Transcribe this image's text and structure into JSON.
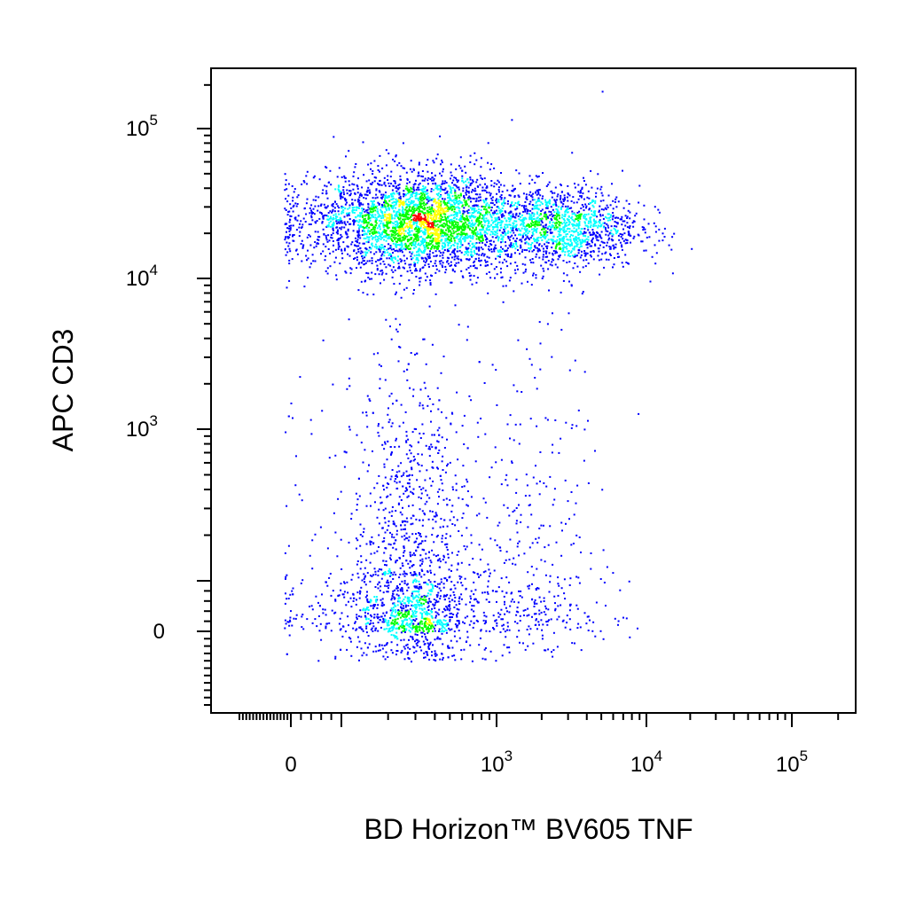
{
  "chart_data": {
    "type": "scatter",
    "title": "",
    "xlabel": "BD Horizon™  BV605 TNF",
    "ylabel": "APC CD3",
    "x_scale": "biexponential",
    "y_scale": "biexponential",
    "xlim": [
      -300,
      250000
    ],
    "ylim": [
      -200,
      250000
    ],
    "x_ticks": [
      {
        "value": 0,
        "base": "0",
        "exp": ""
      },
      {
        "value": 1000,
        "base": "10",
        "exp": "3"
      },
      {
        "value": 10000,
        "base": "10",
        "exp": "4"
      },
      {
        "value": 100000,
        "base": "10",
        "exp": "5"
      }
    ],
    "y_ticks": [
      {
        "value": 0,
        "base": "0",
        "exp": ""
      },
      {
        "value": 1000,
        "base": "10",
        "exp": "3"
      },
      {
        "value": 10000,
        "base": "10",
        "exp": "4"
      },
      {
        "value": 100000,
        "base": "10",
        "exp": "5"
      }
    ],
    "density_colors": [
      "#0000ff",
      "#00ffff",
      "#00ff00",
      "#ffff00",
      "#ff0000"
    ],
    "grid": false,
    "legend": "none",
    "populations": [
      {
        "x_center": 330,
        "x_spread": 0.55,
        "y_center": 24000,
        "y_spread": 0.16,
        "count": 3200
      },
      {
        "x_center": 2500,
        "x_spread": 0.5,
        "y_center": 22000,
        "y_spread": 0.14,
        "count": 1400
      },
      {
        "x_center": 280,
        "x_spread": 0.35,
        "y_center": 120,
        "y_spread": 0.45,
        "count": 1800
      },
      {
        "x_center": 1500,
        "x_spread": 0.5,
        "y_center": 150,
        "y_spread": 0.45,
        "count": 450
      }
    ]
  }
}
